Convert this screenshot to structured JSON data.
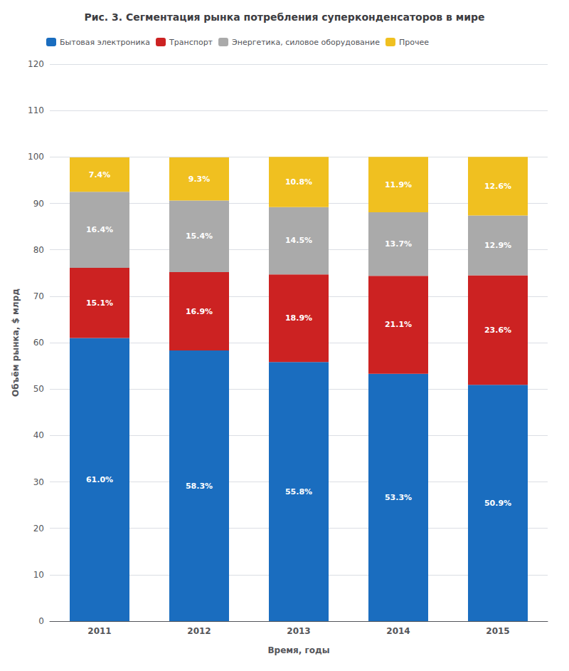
{
  "chart_data": {
    "type": "bar",
    "stacked": true,
    "title": "Рис. 3. Сегментация рынка потребления суперконденсаторов в мире",
    "x_label": "Время, годы",
    "y_label": "Объём рынка, $ млрд",
    "categories": [
      "2011",
      "2012",
      "2013",
      "2014",
      "2015"
    ],
    "series": [
      {
        "name": "Бытовая электроника",
        "color": "#1a6dbf",
        "values": [
          61.0,
          58.3,
          55.8,
          53.3,
          50.9
        ],
        "value_labels": [
          "61.0%",
          "58.3%",
          "55.8%",
          "53.3%",
          "50.9%"
        ]
      },
      {
        "name": "Транспорт",
        "color": "#cc2222",
        "values": [
          15.1,
          16.9,
          18.9,
          21.1,
          23.6
        ],
        "value_labels": [
          "15.1%",
          "16.9%",
          "18.9%",
          "21.1%",
          "23.6%"
        ]
      },
      {
        "name": "Энергетика, силовое оборудование",
        "color": "#aaaaaa",
        "values": [
          16.4,
          15.4,
          14.5,
          13.7,
          12.9
        ],
        "value_labels": [
          "16.4%",
          "15.4%",
          "14.5%",
          "13.7%",
          "12.9%"
        ]
      },
      {
        "name": "Прочее",
        "color": "#f0c020",
        "values": [
          7.4,
          9.3,
          10.8,
          11.9,
          12.6
        ],
        "value_labels": [
          "7.4%",
          "9.3%",
          "10.8%",
          "11.9%",
          "12.6%"
        ]
      }
    ],
    "ylim": [
      0,
      120
    ],
    "yticks": [
      0,
      10,
      20,
      30,
      40,
      50,
      60,
      70,
      80,
      90,
      100,
      110,
      120
    ],
    "grid": true,
    "legend": "upper left",
    "data_labels": true
  }
}
